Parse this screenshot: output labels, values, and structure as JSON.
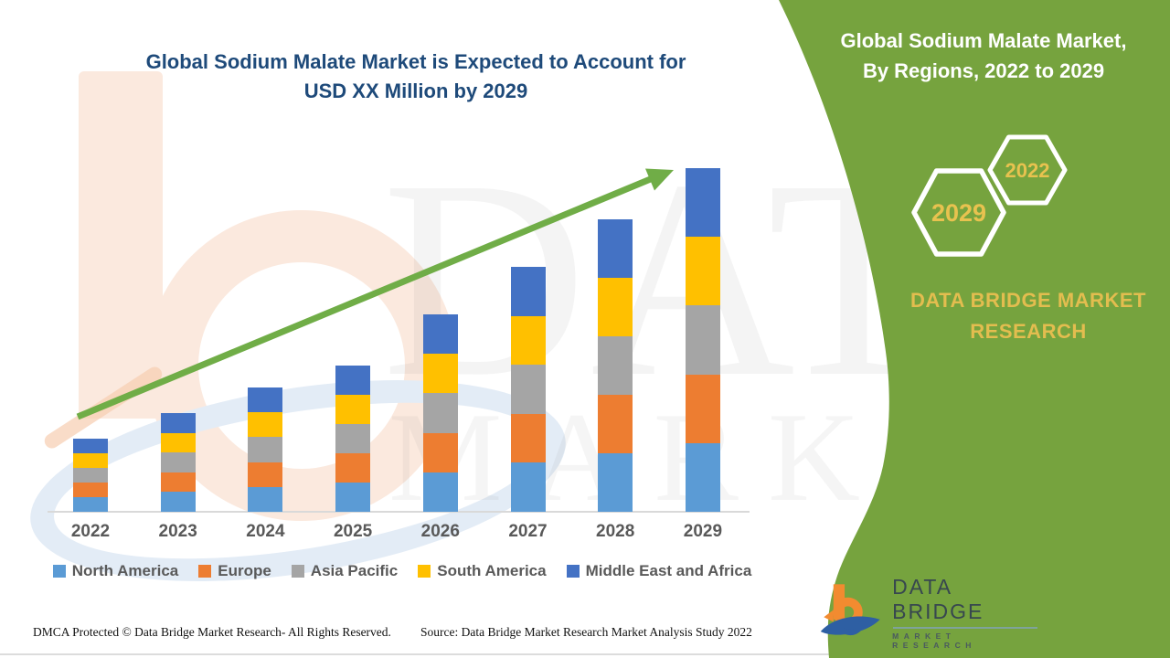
{
  "title": {
    "line1": "Global Sodium Malate Market is Expected to Account for",
    "line2": "USD XX Million by 2029"
  },
  "right_panel": {
    "background_color": "#76A33E",
    "heading_line1": "Global Sodium Malate Market,",
    "heading_line2": "By Regions, 2022 to 2029",
    "hexagons": [
      {
        "label": "2029"
      },
      {
        "label": "2022"
      }
    ],
    "brand_line1": "DATA BRIDGE MARKET",
    "brand_line2": "RESEARCH",
    "gold_color": "#E3BD4F"
  },
  "watermark": {
    "line1": "DATABRIDGE",
    "line2": "MARKET RESEARCH"
  },
  "footer": {
    "dmca": "DMCA Protected © Data Bridge Market Research- All Rights Reserved.",
    "source": "Source: Data Bridge Market Research Market Analysis Study 2022"
  },
  "footer_logo": {
    "name": "DATA BRIDGE",
    "sub": "MARKET RESEARCH",
    "orange": "#F28B30",
    "blue": "#2E5FA3"
  },
  "trend_arrow": {
    "color": "#70AD47"
  },
  "chart_data": {
    "type": "bar",
    "stacked": true,
    "title": "Global Sodium Malate Market is Expected to Account for USD XX Million by 2029",
    "xlabel": "",
    "ylabel": "",
    "value_axis_labeled": false,
    "grid": false,
    "legend_position": "bottom",
    "categories": [
      "2022",
      "2023",
      "2024",
      "2025",
      "2026",
      "2027",
      "2028",
      "2029"
    ],
    "series": [
      {
        "name": "North America",
        "color": "#5B9BD5",
        "values": [
          4.0,
          5.4,
          6.8,
          8.0,
          10.8,
          13.4,
          16.0,
          18.8
        ]
      },
      {
        "name": "Europe",
        "color": "#ED7D31",
        "values": [
          4.0,
          5.4,
          6.8,
          8.0,
          10.8,
          13.4,
          16.0,
          18.8
        ]
      },
      {
        "name": "Asia Pacific",
        "color": "#A5A5A5",
        "values": [
          4.0,
          5.4,
          6.8,
          8.0,
          10.8,
          13.4,
          16.0,
          18.8
        ]
      },
      {
        "name": "South America",
        "color": "#FFC000",
        "values": [
          4.0,
          5.4,
          6.8,
          8.0,
          10.8,
          13.4,
          16.0,
          18.8
        ]
      },
      {
        "name": "Middle East and Africa",
        "color": "#4472C4",
        "values": [
          4.0,
          5.4,
          6.8,
          8.0,
          10.8,
          13.4,
          16.0,
          18.8
        ]
      }
    ],
    "totals": [
      20,
      27,
      34,
      40,
      54,
      67,
      80,
      94
    ]
  }
}
